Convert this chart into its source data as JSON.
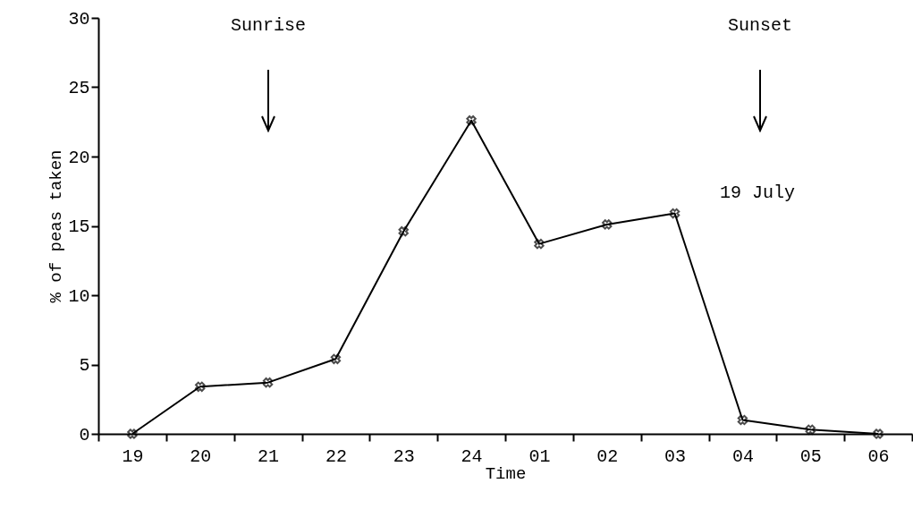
{
  "chart_data": {
    "type": "line",
    "xlabel": "Time",
    "ylabel": "% of peas taken",
    "categories": [
      "19",
      "20",
      "21",
      "22",
      "23",
      "24",
      "01",
      "02",
      "03",
      "04",
      "05",
      "06"
    ],
    "series": [
      {
        "color": "#000000",
        "values": [
          0,
          3.4,
          3.7,
          5.4,
          14.6,
          22.6,
          13.7,
          15.1,
          15.9,
          1.0,
          0.3,
          0
        ]
      }
    ],
    "ylim": [
      0,
      30
    ],
    "yticks": [
      0,
      5,
      10,
      15,
      20,
      25,
      30
    ],
    "marker": "cross",
    "line_style": "solid",
    "grid": false,
    "annotations": [
      "Sunrise",
      "Sunset",
      "19 July"
    ]
  }
}
